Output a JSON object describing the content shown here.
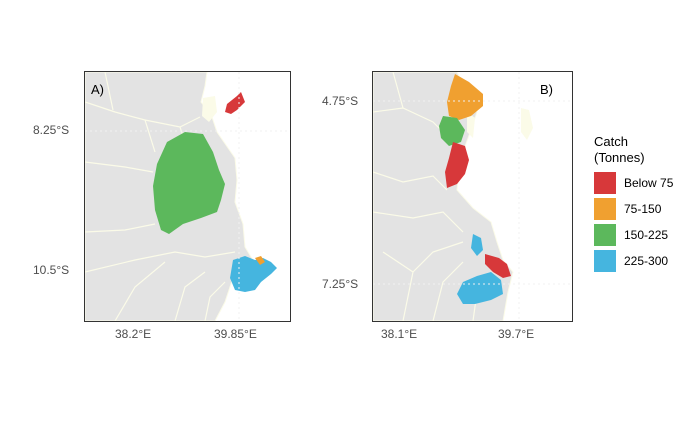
{
  "panels": [
    {
      "label": "A)",
      "y_ticks": [
        "8.25°S",
        "10.5°S"
      ],
      "x_ticks": [
        "38.2°E",
        "39.85°E"
      ]
    },
    {
      "label": "B)",
      "y_ticks": [
        "4.75°S",
        "7.25°S"
      ],
      "x_ticks": [
        "38.1°E",
        "39.7°E"
      ]
    }
  ],
  "legend": {
    "title_line1": "Catch",
    "title_line2": "(Tonnes)",
    "items": [
      {
        "label": "Below 75",
        "color": "#d7383a"
      },
      {
        "label": "75-150",
        "color": "#f0a030"
      },
      {
        "label": "150-225",
        "color": "#5cb85c"
      },
      {
        "label": "225-300",
        "color": "#45b5df"
      }
    ]
  },
  "colors": {
    "land": "#e3e3e3",
    "sea": "#ffffff",
    "boundary": "#fbfbe8",
    "frame": "#333333"
  }
}
